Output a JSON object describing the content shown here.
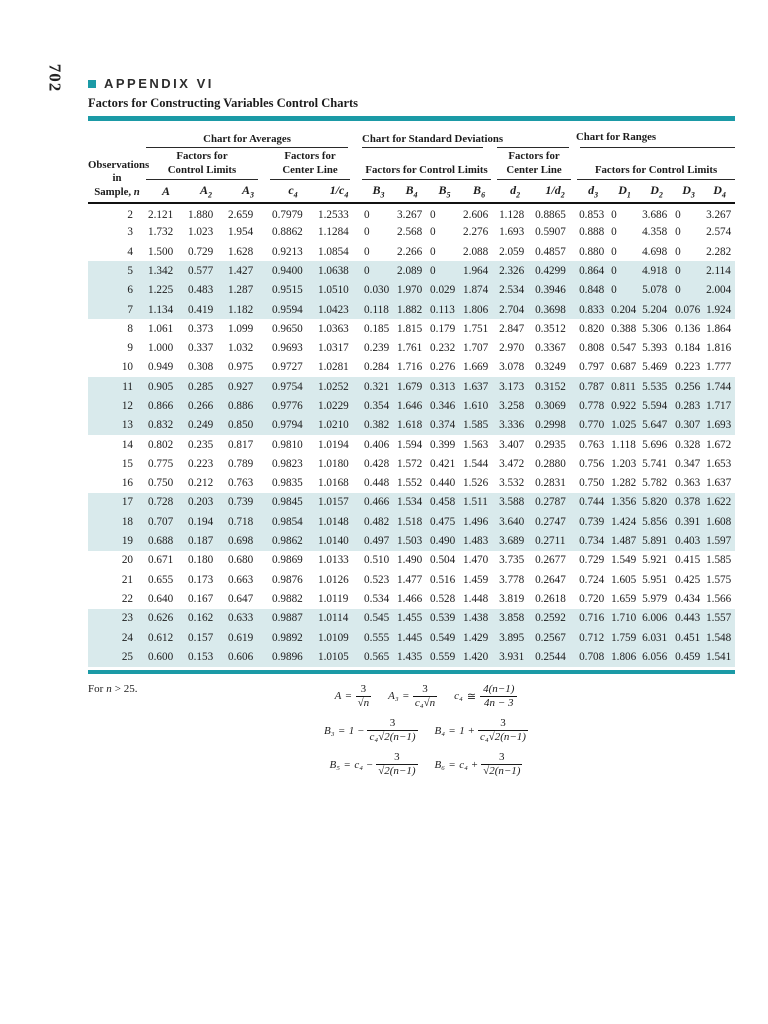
{
  "page": {
    "number": "702"
  },
  "colors": {
    "accent": "#1b9aa6",
    "row_highlight": "#d9eaec"
  },
  "header": {
    "appendix": "APPENDIX VI",
    "title": "Factors for Constructing Variables Control Charts"
  },
  "table": {
    "charts": [
      {
        "label": "Chart for Averages"
      },
      {
        "label": "Chart for Standard Deviations"
      },
      {
        "label": "Chart for Ranges"
      }
    ],
    "obs_header": {
      "line1": "Observations",
      "line2": "in",
      "line3": "Sample,",
      "line3_var": "n"
    },
    "subgroups": [
      {
        "line1": "Factors for",
        "line2": "Control Limits"
      },
      {
        "line1": "Factors for",
        "line2": "Center Line"
      },
      {
        "label": "Factors for Control Limits"
      },
      {
        "line1": "Factors for",
        "line2": "Center Line"
      },
      {
        "label": "Factors for Control Limits"
      }
    ],
    "symbols": [
      {
        "base": "A",
        "sub": ""
      },
      {
        "base": "A",
        "sub": "2"
      },
      {
        "base": "A",
        "sub": "3"
      },
      {
        "base": "c",
        "sub": "4"
      },
      {
        "base": "1/c",
        "sub": "4"
      },
      {
        "base": "B",
        "sub": "3"
      },
      {
        "base": "B",
        "sub": "4"
      },
      {
        "base": "B",
        "sub": "5"
      },
      {
        "base": "B",
        "sub": "6"
      },
      {
        "base": "d",
        "sub": "2"
      },
      {
        "base": "1/d",
        "sub": "2"
      },
      {
        "base": "d",
        "sub": "3"
      },
      {
        "base": "D",
        "sub": "1"
      },
      {
        "base": "D",
        "sub": "2"
      },
      {
        "base": "D",
        "sub": "3"
      },
      {
        "base": "D",
        "sub": "4"
      }
    ],
    "highlighted_rows": [
      5,
      6,
      7,
      11,
      12,
      13,
      17,
      18,
      19,
      23,
      24,
      25
    ],
    "rows": [
      {
        "n": "2",
        "values": [
          "2.121",
          "1.880",
          "2.659",
          "0.7979",
          "1.2533",
          "0",
          "3.267",
          "0",
          "2.606",
          "1.128",
          "0.8865",
          "0.853",
          "0",
          "3.686",
          "0",
          "3.267"
        ]
      },
      {
        "n": "3",
        "values": [
          "1.732",
          "1.023",
          "1.954",
          "0.8862",
          "1.1284",
          "0",
          "2.568",
          "0",
          "2.276",
          "1.693",
          "0.5907",
          "0.888",
          "0",
          "4.358",
          "0",
          "2.574"
        ]
      },
      {
        "n": "4",
        "values": [
          "1.500",
          "0.729",
          "1.628",
          "0.9213",
          "1.0854",
          "0",
          "2.266",
          "0",
          "2.088",
          "2.059",
          "0.4857",
          "0.880",
          "0",
          "4.698",
          "0",
          "2.282"
        ]
      },
      {
        "n": "5",
        "values": [
          "1.342",
          "0.577",
          "1.427",
          "0.9400",
          "1.0638",
          "0",
          "2.089",
          "0",
          "1.964",
          "2.326",
          "0.4299",
          "0.864",
          "0",
          "4.918",
          "0",
          "2.114"
        ]
      },
      {
        "n": "6",
        "values": [
          "1.225",
          "0.483",
          "1.287",
          "0.9515",
          "1.0510",
          "0.030",
          "1.970",
          "0.029",
          "1.874",
          "2.534",
          "0.3946",
          "0.848",
          "0",
          "5.078",
          "0",
          "2.004"
        ]
      },
      {
        "n": "7",
        "values": [
          "1.134",
          "0.419",
          "1.182",
          "0.9594",
          "1.0423",
          "0.118",
          "1.882",
          "0.113",
          "1.806",
          "2.704",
          "0.3698",
          "0.833",
          "0.204",
          "5.204",
          "0.076",
          "1.924"
        ]
      },
      {
        "n": "8",
        "values": [
          "1.061",
          "0.373",
          "1.099",
          "0.9650",
          "1.0363",
          "0.185",
          "1.815",
          "0.179",
          "1.751",
          "2.847",
          "0.3512",
          "0.820",
          "0.388",
          "5.306",
          "0.136",
          "1.864"
        ]
      },
      {
        "n": "9",
        "values": [
          "1.000",
          "0.337",
          "1.032",
          "0.9693",
          "1.0317",
          "0.239",
          "1.761",
          "0.232",
          "1.707",
          "2.970",
          "0.3367",
          "0.808",
          "0.547",
          "5.393",
          "0.184",
          "1.816"
        ]
      },
      {
        "n": "10",
        "values": [
          "0.949",
          "0.308",
          "0.975",
          "0.9727",
          "1.0281",
          "0.284",
          "1.716",
          "0.276",
          "1.669",
          "3.078",
          "0.3249",
          "0.797",
          "0.687",
          "5.469",
          "0.223",
          "1.777"
        ]
      },
      {
        "n": "11",
        "values": [
          "0.905",
          "0.285",
          "0.927",
          "0.9754",
          "1.0252",
          "0.321",
          "1.679",
          "0.313",
          "1.637",
          "3.173",
          "0.3152",
          "0.787",
          "0.811",
          "5.535",
          "0.256",
          "1.744"
        ]
      },
      {
        "n": "12",
        "values": [
          "0.866",
          "0.266",
          "0.886",
          "0.9776",
          "1.0229",
          "0.354",
          "1.646",
          "0.346",
          "1.610",
          "3.258",
          "0.3069",
          "0.778",
          "0.922",
          "5.594",
          "0.283",
          "1.717"
        ]
      },
      {
        "n": "13",
        "values": [
          "0.832",
          "0.249",
          "0.850",
          "0.9794",
          "1.0210",
          "0.382",
          "1.618",
          "0.374",
          "1.585",
          "3.336",
          "0.2998",
          "0.770",
          "1.025",
          "5.647",
          "0.307",
          "1.693"
        ]
      },
      {
        "n": "14",
        "values": [
          "0.802",
          "0.235",
          "0.817",
          "0.9810",
          "1.0194",
          "0.406",
          "1.594",
          "0.399",
          "1.563",
          "3.407",
          "0.2935",
          "0.763",
          "1.118",
          "5.696",
          "0.328",
          "1.672"
        ]
      },
      {
        "n": "15",
        "values": [
          "0.775",
          "0.223",
          "0.789",
          "0.9823",
          "1.0180",
          "0.428",
          "1.572",
          "0.421",
          "1.544",
          "3.472",
          "0.2880",
          "0.756",
          "1.203",
          "5.741",
          "0.347",
          "1.653"
        ]
      },
      {
        "n": "16",
        "values": [
          "0.750",
          "0.212",
          "0.763",
          "0.9835",
          "1.0168",
          "0.448",
          "1.552",
          "0.440",
          "1.526",
          "3.532",
          "0.2831",
          "0.750",
          "1.282",
          "5.782",
          "0.363",
          "1.637"
        ]
      },
      {
        "n": "17",
        "values": [
          "0.728",
          "0.203",
          "0.739",
          "0.9845",
          "1.0157",
          "0.466",
          "1.534",
          "0.458",
          "1.511",
          "3.588",
          "0.2787",
          "0.744",
          "1.356",
          "5.820",
          "0.378",
          "1.622"
        ]
      },
      {
        "n": "18",
        "values": [
          "0.707",
          "0.194",
          "0.718",
          "0.9854",
          "1.0148",
          "0.482",
          "1.518",
          "0.475",
          "1.496",
          "3.640",
          "0.2747",
          "0.739",
          "1.424",
          "5.856",
          "0.391",
          "1.608"
        ]
      },
      {
        "n": "19",
        "values": [
          "0.688",
          "0.187",
          "0.698",
          "0.9862",
          "1.0140",
          "0.497",
          "1.503",
          "0.490",
          "1.483",
          "3.689",
          "0.2711",
          "0.734",
          "1.487",
          "5.891",
          "0.403",
          "1.597"
        ]
      },
      {
        "n": "20",
        "values": [
          "0.671",
          "0.180",
          "0.680",
          "0.9869",
          "1.0133",
          "0.510",
          "1.490",
          "0.504",
          "1.470",
          "3.735",
          "0.2677",
          "0.729",
          "1.549",
          "5.921",
          "0.415",
          "1.585"
        ]
      },
      {
        "n": "21",
        "values": [
          "0.655",
          "0.173",
          "0.663",
          "0.9876",
          "1.0126",
          "0.523",
          "1.477",
          "0.516",
          "1.459",
          "3.778",
          "0.2647",
          "0.724",
          "1.605",
          "5.951",
          "0.425",
          "1.575"
        ]
      },
      {
        "n": "22",
        "values": [
          "0.640",
          "0.167",
          "0.647",
          "0.9882",
          "1.0119",
          "0.534",
          "1.466",
          "0.528",
          "1.448",
          "3.819",
          "0.2618",
          "0.720",
          "1.659",
          "5.979",
          "0.434",
          "1.566"
        ]
      },
      {
        "n": "23",
        "values": [
          "0.626",
          "0.162",
          "0.633",
          "0.9887",
          "1.0114",
          "0.545",
          "1.455",
          "0.539",
          "1.438",
          "3.858",
          "0.2592",
          "0.716",
          "1.710",
          "6.006",
          "0.443",
          "1.557"
        ]
      },
      {
        "n": "24",
        "values": [
          "0.612",
          "0.157",
          "0.619",
          "0.9892",
          "1.0109",
          "0.555",
          "1.445",
          "0.549",
          "1.429",
          "3.895",
          "0.2567",
          "0.712",
          "1.759",
          "6.031",
          "0.451",
          "1.548"
        ]
      },
      {
        "n": "25",
        "values": [
          "0.600",
          "0.153",
          "0.606",
          "0.9896",
          "1.0105",
          "0.565",
          "1.435",
          "0.559",
          "1.420",
          "3.931",
          "0.2544",
          "0.708",
          "1.806",
          "6.056",
          "0.459",
          "1.541"
        ]
      }
    ]
  },
  "footnote": {
    "pre": "For",
    "var": "n",
    "post": "> 25."
  },
  "formulas": {
    "rows": [
      [
        {
          "lhs": "A",
          "op": "=",
          "pre": "",
          "num": "3",
          "den_pre": "",
          "den_sqrt": "n"
        },
        {
          "lhs": "A₃",
          "op": "=",
          "pre": "",
          "num": "3",
          "den_pre": "c₄",
          "den_sqrt": "n"
        },
        {
          "lhs": "c₄",
          "op": "≅",
          "pre": "",
          "num": "4(n−1)",
          "den_pre": "4n − 3",
          "den_sqrt": ""
        }
      ],
      [
        {
          "lhs": "B₃",
          "op": "=",
          "pre": "1 −",
          "num": "3",
          "den_pre": "c₄",
          "den_sqrt": "2(n−1)"
        },
        {
          "lhs": "B₄",
          "op": "=",
          "pre": "1 +",
          "num": "3",
          "den_pre": "c₄",
          "den_sqrt": "2(n−1)"
        }
      ],
      [
        {
          "lhs": "B₅",
          "op": "=",
          "pre": "c₄ −",
          "num": "3",
          "den_pre": "",
          "den_sqrt": "2(n−1)"
        },
        {
          "lhs": "B₆",
          "op": "=",
          "pre": "c₄ +",
          "num": "3",
          "den_pre": "",
          "den_sqrt": "2(n−1)"
        }
      ]
    ]
  }
}
